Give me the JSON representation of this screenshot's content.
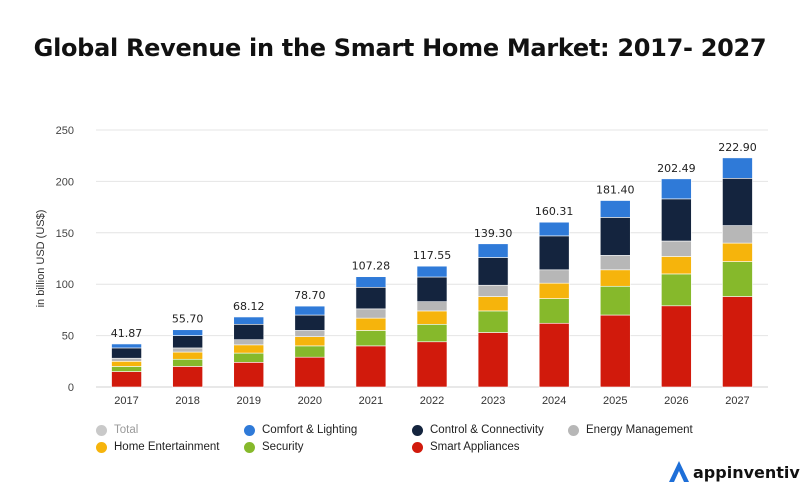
{
  "colors": {
    "total": "#c9c9c9",
    "comfort_lighting": "#2f7ad8",
    "control_connectivity": "#14243e",
    "energy_management": "#b7b7b7",
    "home_entertainment": "#f6b40c",
    "security": "#86b92b",
    "smart_appliances": "#d11a0c",
    "brand": "#1e6fd8"
  },
  "brand": {
    "name": "appinventiv",
    "icon": "appinventiv-logo-icon"
  },
  "chart_data": {
    "type": "bar",
    "stacked": true,
    "title": "Global Revenue in the Smart Home Market: 2017- 2027",
    "xlabel": "",
    "ylabel": "in billion USD (US$)",
    "ylim": [
      0,
      250
    ],
    "yticks": [
      0,
      50,
      100,
      150,
      200,
      250
    ],
    "grid": true,
    "legend_position": "bottom",
    "categories": [
      "2017",
      "2018",
      "2019",
      "2020",
      "2021",
      "2022",
      "2023",
      "2024",
      "2025",
      "2026",
      "2027"
    ],
    "totals": [
      "41.87",
      "55.70",
      "68.12",
      "78.70",
      "107.28",
      "117.55",
      "139.30",
      "160.31",
      "181.40",
      "202.49",
      "222.90"
    ],
    "series": [
      {
        "key": "smart_appliances",
        "name": "Smart Appliances",
        "values": [
          15,
          20,
          24,
          29,
          40,
          44,
          53,
          62,
          70,
          79,
          88
        ]
      },
      {
        "key": "security",
        "name": "Security",
        "values": [
          5,
          7,
          9,
          11,
          15,
          17,
          21,
          24,
          28,
          31,
          34
        ]
      },
      {
        "key": "home_entertainment",
        "name": "Home Entertainment",
        "values": [
          5,
          7,
          8,
          9,
          12,
          13,
          14,
          15,
          16,
          17,
          18
        ]
      },
      {
        "key": "energy_management",
        "name": "Energy Management",
        "values": [
          3,
          4,
          5,
          6,
          9,
          9,
          11,
          13,
          14,
          15,
          17
        ]
      },
      {
        "key": "control_connectivity",
        "name": "Control & Connectivity",
        "values": [
          10,
          12,
          15,
          15,
          21,
          24,
          27,
          33,
          37,
          41,
          46
        ]
      },
      {
        "key": "comfort_lighting",
        "name": "Comfort & Lighting",
        "values": [
          3.87,
          5.7,
          7.12,
          8.7,
          10.28,
          10.55,
          13.3,
          13.31,
          16.4,
          19.49,
          19.9
        ]
      }
    ],
    "legend": [
      {
        "key": "total",
        "name": "Total",
        "muted": true
      },
      {
        "key": "comfort_lighting",
        "name": "Comfort & Lighting"
      },
      {
        "key": "control_connectivity",
        "name": "Control & Connectivity"
      },
      {
        "key": "energy_management",
        "name": "Energy Management"
      },
      {
        "key": "home_entertainment",
        "name": "Home Entertainment"
      },
      {
        "key": "security",
        "name": "Security"
      },
      {
        "key": "smart_appliances",
        "name": "Smart Appliances"
      }
    ]
  }
}
